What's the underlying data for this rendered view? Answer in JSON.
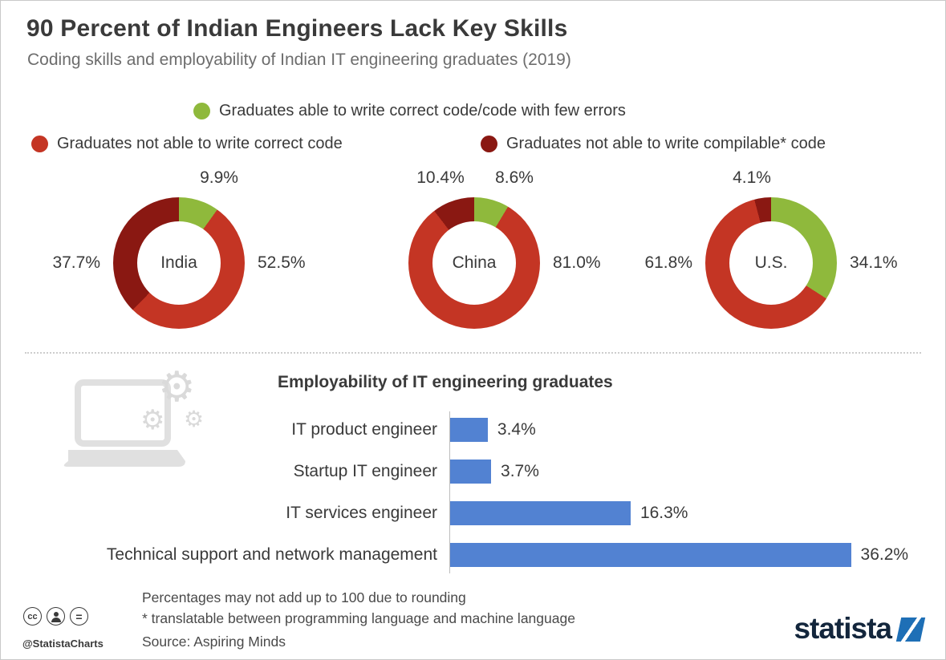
{
  "header": {
    "title": "90 Percent of Indian Engineers Lack Key Skills",
    "subtitle": "Coding skills and employability of Indian IT engineering graduates (2019)"
  },
  "colors": {
    "able": "#8fb93c",
    "not_correct": "#c43524",
    "not_compilable": "#8a1812",
    "bar": "#5282d2"
  },
  "legend": {
    "able": "Graduates able to write correct code/code with few errors",
    "not_correct": "Graduates not able to write correct code",
    "not_compilable": "Graduates not able to write compilable* code"
  },
  "chart_data": [
    {
      "type": "pie",
      "subtype": "donut",
      "series_names": {
        "able": "Graduates able to write correct code/code with few errors",
        "not_correct": "Graduates not able to write correct code",
        "not_compilable": "Graduates not able to write compilable* code"
      },
      "donuts": [
        {
          "name": "India",
          "segments": [
            {
              "key": "able",
              "value": 9.9,
              "label_pos": "top-right"
            },
            {
              "key": "not_correct",
              "value": 52.5,
              "label_pos": "right"
            },
            {
              "key": "not_compilable",
              "value": 37.7,
              "label_pos": "left"
            }
          ]
        },
        {
          "name": "China",
          "segments": [
            {
              "key": "able",
              "value": 8.6,
              "label_pos": "top-right"
            },
            {
              "key": "not_correct",
              "value": 81.0,
              "label_pos": "right"
            },
            {
              "key": "not_compilable",
              "value": 10.4,
              "label_pos": "top-left"
            }
          ]
        },
        {
          "name": "U.S.",
          "segments": [
            {
              "key": "able",
              "value": 34.1,
              "label_pos": "right"
            },
            {
              "key": "not_correct",
              "value": 61.8,
              "label_pos": "left"
            },
            {
              "key": "not_compilable",
              "value": 4.1,
              "label_pos": "top"
            }
          ]
        }
      ]
    },
    {
      "type": "bar",
      "orientation": "horizontal",
      "title": "Employability of IT engineering graduates",
      "categories": [
        "IT product engineer",
        "Startup IT engineer",
        "IT services engineer",
        "Technical support and network management"
      ],
      "values": [
        3.4,
        3.7,
        16.3,
        36.2
      ],
      "value_labels": [
        "3.4%",
        "3.7%",
        "16.3%",
        "36.2%"
      ],
      "xlim": [
        0,
        40
      ],
      "unit": "%"
    }
  ],
  "footer": {
    "note1": "Percentages may not add up to 100 due to rounding",
    "note2": "* translatable between programming language and machine language",
    "credit": "@StatistaCharts",
    "source": "Source: Aspiring Minds",
    "brand": "statista"
  }
}
